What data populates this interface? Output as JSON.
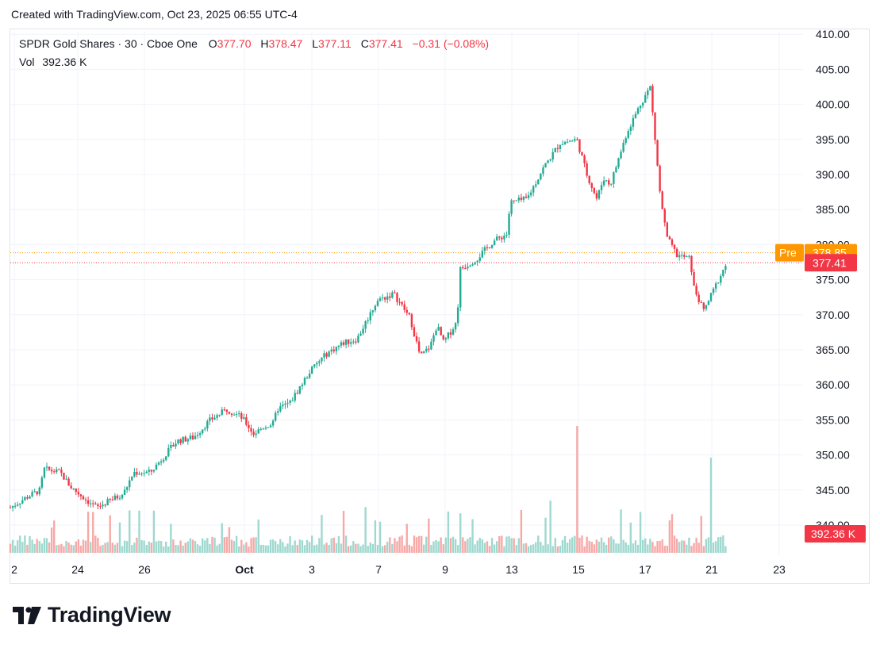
{
  "caption": "Created with TradingView.com, Oct 23, 2025 06:55 UTC-4",
  "legend": {
    "symbol": "SPDR Gold Shares · 30 · Cboe One",
    "o_label": "O",
    "o_value": "377.70",
    "h_label": "H",
    "h_value": "378.47",
    "l_label": "L",
    "l_value": "377.11",
    "c_label": "C",
    "c_value": "377.41",
    "change": "−0.31 (−0.08%)",
    "vol_label": "Vol",
    "vol_value": "392.36 K"
  },
  "badges": {
    "pre_label": "Pre",
    "pre_value": "378.85",
    "last_value": "377.41",
    "vol_value": "392.36 K"
  },
  "brand": "TradingView",
  "colors": {
    "up": "#22ab94",
    "down": "#f23645",
    "pre": "#ff9800",
    "vol_up": "#9fd8cf",
    "vol_down": "#f7a9a7",
    "grid": "#f0f3fa",
    "text": "#131722"
  },
  "chart_data": {
    "type": "candlestick",
    "y_ticks": [
      "410.00",
      "405.00",
      "400.00",
      "395.00",
      "390.00",
      "385.00",
      "380.00",
      "375.00",
      "370.00",
      "365.00",
      "360.00",
      "355.00",
      "350.00",
      "345.00",
      "340.00"
    ],
    "ylim": [
      337,
      411
    ],
    "x_ticks": [
      "2",
      "24",
      "26",
      "Oct",
      "3",
      "7",
      "9",
      "13",
      "15",
      "17",
      "21",
      "23"
    ],
    "last_price": 377.41,
    "pre_market_price": 378.85,
    "close_path": [
      {
        "day": 0,
        "close": 342.5
      },
      {
        "day": 0.5,
        "close": 344.0
      },
      {
        "day": 0.9,
        "close": 345.0
      },
      {
        "day": 1.0,
        "close": 348.0
      },
      {
        "day": 1.5,
        "close": 347.5
      },
      {
        "day": 1.8,
        "close": 345.5
      },
      {
        "day": 2.3,
        "close": 343.5
      },
      {
        "day": 2.6,
        "close": 342.5
      },
      {
        "day": 3.0,
        "close": 343.5
      },
      {
        "day": 3.4,
        "close": 344.5
      },
      {
        "day": 3.7,
        "close": 347.5
      },
      {
        "day": 4.2,
        "close": 347.5
      },
      {
        "day": 5.0,
        "close": 352.0
      },
      {
        "day": 5.5,
        "close": 352.5
      },
      {
        "day": 6.0,
        "close": 355.0
      },
      {
        "day": 6.5,
        "close": 356.5
      },
      {
        "day": 6.9,
        "close": 355.5
      },
      {
        "day": 7.0,
        "close": 355.0
      },
      {
        "day": 7.3,
        "close": 353.0
      },
      {
        "day": 7.6,
        "close": 354.0
      },
      {
        "day": 7.9,
        "close": 354.5
      },
      {
        "day": 8.0,
        "close": 356.5
      },
      {
        "day": 8.4,
        "close": 357.5
      },
      {
        "day": 9.0,
        "close": 362.0
      },
      {
        "day": 9.5,
        "close": 364.5
      },
      {
        "day": 10.0,
        "close": 366.0
      },
      {
        "day": 10.4,
        "close": 366.5
      },
      {
        "day": 11.0,
        "close": 372.0
      },
      {
        "day": 11.5,
        "close": 373.0
      },
      {
        "day": 12.0,
        "close": 369.5
      },
      {
        "day": 12.3,
        "close": 364.0
      },
      {
        "day": 12.6,
        "close": 365.5
      },
      {
        "day": 12.8,
        "close": 368.5
      },
      {
        "day": 13.0,
        "close": 366.0
      },
      {
        "day": 13.4,
        "close": 369.0
      },
      {
        "day": 13.5,
        "close": 376.5
      },
      {
        "day": 14.0,
        "close": 378.0
      },
      {
        "day": 14.5,
        "close": 380.5
      },
      {
        "day": 14.9,
        "close": 381.5
      },
      {
        "day": 15.0,
        "close": 386.0
      },
      {
        "day": 15.5,
        "close": 386.5
      },
      {
        "day": 16.0,
        "close": 391.0
      },
      {
        "day": 16.5,
        "close": 394.5
      },
      {
        "day": 17.0,
        "close": 395.0
      },
      {
        "day": 17.3,
        "close": 390.0
      },
      {
        "day": 17.6,
        "close": 386.5
      },
      {
        "day": 17.8,
        "close": 389.5
      },
      {
        "day": 18.0,
        "close": 388.5
      },
      {
        "day": 18.5,
        "close": 396.0
      },
      {
        "day": 18.9,
        "close": 400.0
      },
      {
        "day": 19.2,
        "close": 402.5
      },
      {
        "day": 19.5,
        "close": 387.0
      },
      {
        "day": 19.7,
        "close": 381.0
      },
      {
        "day": 20.0,
        "close": 378.5
      },
      {
        "day": 20.4,
        "close": 378.0
      },
      {
        "day": 20.5,
        "close": 374.0
      },
      {
        "day": 20.8,
        "close": 370.5
      },
      {
        "day": 21.0,
        "close": 372.5
      },
      {
        "day": 21.3,
        "close": 375.5
      },
      {
        "day": 21.5,
        "close": 377.4
      }
    ]
  }
}
